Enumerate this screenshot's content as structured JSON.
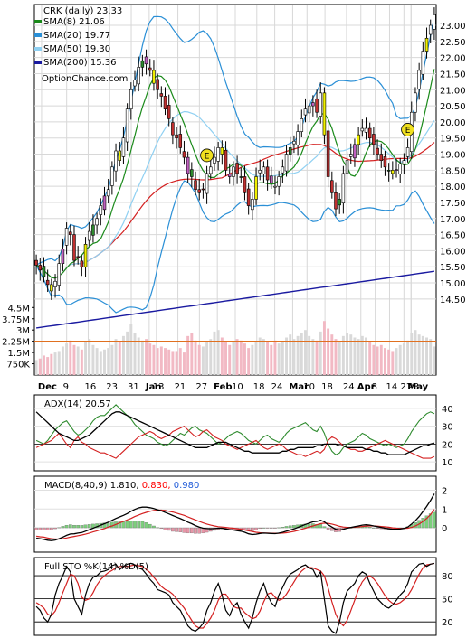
{
  "chart_data": [
    {
      "type": "candlestick",
      "ticker_label": "CRK (daily) 23.33",
      "watermark": "OptionChance.com",
      "legend": [
        {
          "label": "SMA(8) 21.06",
          "color": "#1a8a1a"
        },
        {
          "label": "SMA(20) 19.77",
          "color": "#2a8fd6"
        },
        {
          "label": "SMA(50) 19.30",
          "color": "#8fd0f2"
        },
        {
          "label": "SMA(200) 15.36",
          "color": "#1a1aa0"
        }
      ],
      "legend_placement": "top-left",
      "x_tick_labels": [
        "Dec",
        "9",
        "16",
        "23",
        "31",
        "Jan",
        "13",
        "21",
        "27",
        "Feb",
        "10",
        "18",
        "24",
        "Mar",
        "10",
        "18",
        "24",
        "Apr",
        "8",
        "14",
        "21",
        "28",
        "May"
      ],
      "price_axis_labels": [
        "23.00",
        "22.50",
        "22.00",
        "21.50",
        "21.00",
        "20.50",
        "20.00",
        "19.50",
        "19.00",
        "18.50",
        "18.00",
        "17.50",
        "17.00",
        "16.50",
        "16.00",
        "15.50",
        "15.00",
        "14.50"
      ],
      "ylim": [
        14.3,
        23.45
      ],
      "volume_axis_labels": [
        "4.5M",
        "3.75M",
        "3M",
        "2.25M",
        "1.5M",
        "750K"
      ],
      "volume_ylim": [
        0,
        5000000
      ],
      "earnings_marker": "E",
      "earnings_dates_index": [
        45,
        98
      ],
      "grid": true,
      "closes": [
        15.55,
        15.4,
        15.2,
        14.95,
        14.75,
        15.05,
        15.6,
        16.05,
        16.7,
        16.5,
        15.7,
        15.8,
        15.5,
        16.2,
        16.6,
        16.8,
        17.0,
        17.4,
        17.7,
        17.9,
        18.6,
        19.1,
        18.8,
        19.5,
        20.4,
        21.0,
        21.3,
        21.7,
        21.9,
        21.8,
        21.6,
        21.2,
        21.0,
        20.8,
        20.4,
        20.1,
        19.6,
        19.5,
        19.2,
        18.9,
        18.4,
        18.3,
        17.9,
        17.8,
        17.9,
        18.4,
        18.6,
        18.9,
        19.2,
        19.0,
        18.5,
        18.3,
        18.6,
        18.4,
        18.3,
        17.8,
        17.4,
        17.6,
        18.3,
        18.5,
        18.6,
        18.2,
        18.1,
        18.0,
        18.3,
        18.6,
        19.0,
        19.2,
        19.4,
        19.7,
        20.1,
        20.4,
        20.5,
        20.6,
        20.3,
        20.9,
        19.6,
        18.3,
        17.8,
        17.3,
        17.6,
        18.4,
        18.8,
        19.0,
        19.3,
        19.6,
        19.8,
        19.8,
        19.5,
        19.3,
        19.0,
        18.8,
        18.6,
        18.5,
        18.4,
        18.5,
        18.7,
        18.8,
        19.2,
        20.3,
        20.9,
        21.6,
        22.2,
        22.6,
        23.0,
        23.33
      ],
      "volume_millions": [
        1.0,
        1.1,
        1.3,
        1.2,
        1.4,
        1.5,
        1.6,
        1.9,
        2.1,
        2.3,
        2.0,
        1.9,
        1.7,
        2.2,
        2.4,
        2.0,
        1.8,
        1.6,
        1.7,
        1.8,
        2.0,
        2.4,
        2.2,
        2.6,
        2.9,
        3.4,
        2.8,
        2.5,
        2.3,
        2.4,
        2.1,
        2.0,
        1.8,
        1.9,
        1.8,
        1.7,
        1.6,
        1.6,
        1.8,
        1.5,
        2.6,
        2.8,
        2.3,
        2.0,
        1.9,
        2.2,
        2.4,
        2.9,
        3.0,
        2.5,
        2.2,
        2.0,
        2.2,
        2.4,
        2.3,
        2.1,
        1.8,
        2.0,
        2.2,
        2.5,
        2.4,
        2.2,
        2.0,
        2.3,
        2.1,
        2.2,
        2.5,
        2.7,
        2.4,
        2.6,
        2.8,
        3.0,
        2.6,
        2.4,
        2.3,
        2.9,
        3.6,
        3.1,
        2.7,
        2.4,
        2.2,
        2.6,
        2.8,
        2.7,
        2.5,
        2.4,
        2.6,
        2.5,
        2.2,
        2.0,
        1.9,
        2.0,
        1.8,
        1.7,
        1.6,
        1.8,
        2.0,
        2.1,
        2.3,
        2.8,
        3.0,
        2.7,
        2.6,
        2.5,
        2.4,
        1.9
      ],
      "avg_volume_millions": 2.25,
      "sma200_start_end": [
        13.6,
        15.36
      ]
    },
    {
      "type": "line",
      "title": "ADX(14) 20.57",
      "y_tick_labels": [
        "40",
        "30",
        "20",
        "10"
      ],
      "ylim": [
        6,
        46
      ],
      "reference_lines": [
        20
      ],
      "series_colors": {
        "adx": "#000000",
        "plus_di": "#2e8b2e",
        "minus_di": "#d42020"
      },
      "adx": [
        38,
        36,
        34,
        32,
        30,
        28,
        26,
        25,
        24,
        23,
        22,
        22,
        23,
        24,
        25,
        27,
        29,
        31,
        33,
        35,
        37,
        38,
        38,
        37,
        36,
        35,
        34,
        33,
        32,
        31,
        30,
        29,
        28,
        27,
        26,
        25,
        24,
        23,
        22,
        21,
        20,
        19,
        18,
        18,
        18,
        18,
        19,
        20,
        21,
        21,
        21,
        20,
        19,
        18,
        17,
        16,
        16,
        15,
        15,
        15,
        15,
        15,
        15,
        15,
        15,
        16,
        16,
        17,
        17,
        18,
        18,
        18,
        18,
        18,
        19,
        19,
        20,
        20,
        20,
        20,
        19,
        19,
        18,
        18,
        18,
        18,
        18,
        17,
        17,
        16,
        16,
        15,
        15,
        14,
        14,
        14,
        14,
        14,
        15,
        16,
        17,
        18,
        19,
        19,
        20,
        20.57
      ],
      "plus_di": [
        22,
        21,
        20,
        22,
        25,
        28,
        30,
        32,
        33,
        30,
        27,
        25,
        26,
        28,
        30,
        33,
        35,
        36,
        36,
        38,
        40,
        42,
        40,
        38,
        36,
        34,
        31,
        29,
        27,
        25,
        24,
        23,
        21,
        20,
        19,
        20,
        22,
        24,
        26,
        25,
        27,
        29,
        30,
        28,
        27,
        26,
        24,
        22,
        20,
        21,
        23,
        25,
        26,
        27,
        26,
        24,
        22,
        21,
        20,
        22,
        24,
        25,
        23,
        22,
        21,
        23,
        26,
        28,
        29,
        30,
        31,
        32,
        30,
        28,
        27,
        30,
        26,
        20,
        16,
        14,
        15,
        18,
        20,
        21,
        22,
        24,
        26,
        25,
        23,
        22,
        21,
        20,
        19,
        20,
        19,
        18,
        19,
        20,
        23,
        27,
        30,
        33,
        35,
        37,
        38,
        37
      ],
      "minus_di": [
        18,
        19,
        20,
        21,
        22,
        24,
        26,
        23,
        20,
        18,
        22,
        24,
        21,
        20,
        18,
        17,
        16,
        15,
        15,
        14,
        13,
        12,
        14,
        16,
        18,
        20,
        22,
        24,
        25,
        26,
        27,
        26,
        24,
        23,
        24,
        25,
        27,
        28,
        29,
        30,
        28,
        26,
        24,
        25,
        27,
        28,
        26,
        24,
        23,
        22,
        20,
        19,
        18,
        17,
        18,
        19,
        20,
        21,
        22,
        20,
        18,
        17,
        18,
        19,
        20,
        19,
        17,
        16,
        15,
        14,
        14,
        13,
        14,
        15,
        16,
        15,
        17,
        22,
        24,
        23,
        21,
        19,
        18,
        17,
        17,
        16,
        16,
        17,
        18,
        19,
        20,
        21,
        22,
        21,
        20,
        19,
        18,
        17,
        16,
        15,
        14,
        13,
        12,
        12,
        12,
        13
      ]
    },
    {
      "type": "bar-line",
      "title": "MACD(8,40,9) 1.810,",
      "value_a": "0.830,",
      "value_b": "0.980",
      "value_a_color": "#ff0000",
      "value_b_color": "#1e5ad8",
      "y_tick_labels": [
        "2",
        "1",
        "0"
      ],
      "ylim": [
        -1.2,
        2.6
      ],
      "macd": [
        -0.55,
        -0.58,
        -0.62,
        -0.66,
        -0.68,
        -0.65,
        -0.58,
        -0.5,
        -0.4,
        -0.33,
        -0.32,
        -0.28,
        -0.25,
        -0.18,
        -0.1,
        -0.02,
        0.06,
        0.14,
        0.22,
        0.3,
        0.4,
        0.5,
        0.58,
        0.66,
        0.76,
        0.88,
        0.98,
        1.06,
        1.1,
        1.1,
        1.07,
        1.02,
        0.96,
        0.9,
        0.82,
        0.74,
        0.65,
        0.57,
        0.49,
        0.4,
        0.3,
        0.22,
        0.12,
        0.04,
        -0.02,
        -0.04,
        -0.05,
        -0.04,
        -0.02,
        -0.02,
        -0.06,
        -0.1,
        -0.12,
        -0.15,
        -0.18,
        -0.24,
        -0.32,
        -0.36,
        -0.34,
        -0.3,
        -0.28,
        -0.29,
        -0.3,
        -0.31,
        -0.28,
        -0.24,
        -0.18,
        -0.12,
        -0.06,
        0.02,
        0.1,
        0.18,
        0.25,
        0.32,
        0.34,
        0.4,
        0.32,
        0.16,
        0.04,
        -0.08,
        -0.12,
        -0.08,
        -0.02,
        0.02,
        0.06,
        0.1,
        0.14,
        0.16,
        0.14,
        0.1,
        0.06,
        0.02,
        -0.02,
        -0.05,
        -0.08,
        -0.08,
        -0.06,
        -0.03,
        0.04,
        0.2,
        0.38,
        0.6,
        0.86,
        1.14,
        1.45,
        1.81
      ],
      "signal": [
        -0.45,
        -0.48,
        -0.5,
        -0.54,
        -0.58,
        -0.6,
        -0.6,
        -0.58,
        -0.54,
        -0.5,
        -0.46,
        -0.42,
        -0.38,
        -0.34,
        -0.28,
        -0.22,
        -0.16,
        -0.1,
        -0.04,
        0.04,
        0.1,
        0.18,
        0.26,
        0.34,
        0.42,
        0.5,
        0.6,
        0.68,
        0.76,
        0.82,
        0.88,
        0.92,
        0.94,
        0.94,
        0.92,
        0.88,
        0.84,
        0.78,
        0.72,
        0.66,
        0.58,
        0.5,
        0.42,
        0.34,
        0.26,
        0.2,
        0.14,
        0.1,
        0.06,
        0.04,
        0.02,
        0.0,
        -0.02,
        -0.05,
        -0.08,
        -0.12,
        -0.16,
        -0.2,
        -0.24,
        -0.26,
        -0.28,
        -0.28,
        -0.29,
        -0.29,
        -0.29,
        -0.28,
        -0.26,
        -0.23,
        -0.19,
        -0.14,
        -0.08,
        -0.02,
        0.04,
        0.1,
        0.16,
        0.22,
        0.25,
        0.24,
        0.2,
        0.14,
        0.08,
        0.04,
        0.02,
        0.02,
        0.03,
        0.05,
        0.07,
        0.09,
        0.1,
        0.1,
        0.09,
        0.07,
        0.05,
        0.03,
        0.0,
        -0.02,
        -0.03,
        -0.03,
        -0.02,
        0.02,
        0.1,
        0.2,
        0.34,
        0.5,
        0.7,
        0.98
      ]
    },
    {
      "type": "line",
      "title": "Full STO %K(14) %D(5)",
      "y_tick_labels": [
        "80",
        "50",
        "20"
      ],
      "ylim": [
        5,
        100
      ],
      "reference_lines": [
        80,
        50,
        20
      ],
      "k": [
        40,
        35,
        25,
        20,
        30,
        55,
        70,
        80,
        92,
        85,
        50,
        40,
        30,
        55,
        70,
        78,
        80,
        85,
        86,
        88,
        93,
        95,
        88,
        92,
        95,
        96,
        94,
        90,
        88,
        82,
        75,
        70,
        62,
        60,
        58,
        55,
        45,
        40,
        35,
        25,
        15,
        10,
        8,
        12,
        18,
        35,
        45,
        60,
        70,
        55,
        35,
        28,
        40,
        45,
        30,
        20,
        12,
        25,
        45,
        60,
        70,
        55,
        45,
        40,
        55,
        65,
        75,
        82,
        85,
        88,
        92,
        94,
        90,
        88,
        78,
        85,
        50,
        15,
        8,
        5,
        20,
        45,
        60,
        65,
        70,
        80,
        85,
        82,
        70,
        60,
        50,
        45,
        40,
        38,
        42,
        48,
        55,
        60,
        70,
        85,
        90,
        95,
        96,
        92,
        95,
        96
      ],
      "d": [
        45,
        42,
        38,
        30,
        28,
        34,
        45,
        58,
        70,
        82,
        80,
        70,
        52,
        48,
        50,
        58,
        68,
        75,
        80,
        84,
        87,
        90,
        92,
        92,
        92,
        93,
        94,
        93,
        92,
        88,
        84,
        78,
        72,
        66,
        62,
        60,
        56,
        50,
        44,
        38,
        30,
        22,
        15,
        12,
        12,
        18,
        25,
        35,
        48,
        56,
        56,
        48,
        40,
        38,
        38,
        32,
        28,
        24,
        26,
        34,
        46,
        56,
        58,
        52,
        48,
        50,
        56,
        64,
        72,
        80,
        86,
        90,
        91,
        90,
        88,
        86,
        80,
        64,
        46,
        30,
        20,
        15,
        22,
        35,
        48,
        62,
        72,
        78,
        80,
        76,
        70,
        62,
        54,
        48,
        44,
        43,
        45,
        49,
        54,
        62,
        72,
        82,
        90,
        94,
        95,
        96
      ]
    }
  ]
}
